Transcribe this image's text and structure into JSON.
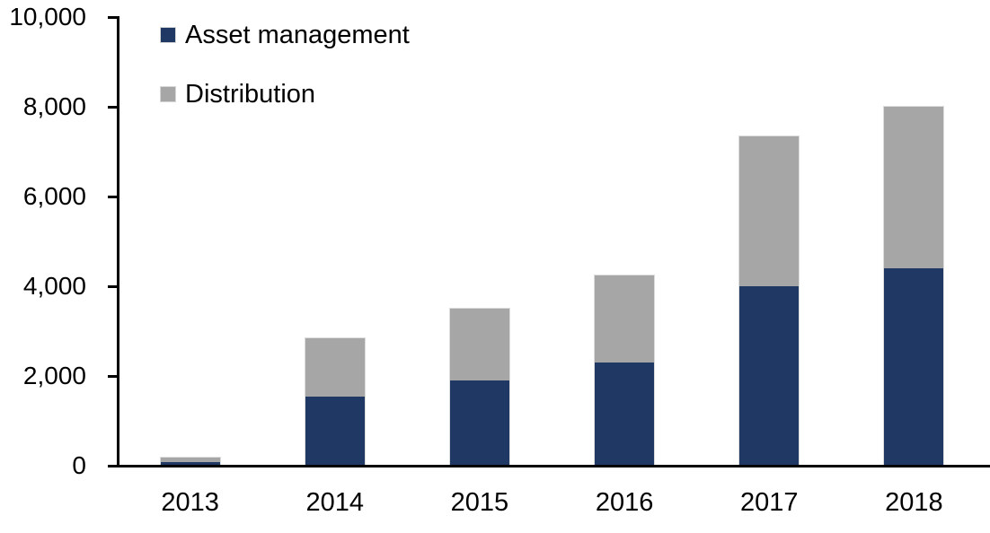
{
  "chart_data": {
    "type": "bar",
    "stacked": true,
    "title": "",
    "xlabel": "",
    "ylabel": "",
    "categories": [
      "2013",
      "2014",
      "2015",
      "2016",
      "2017",
      "2018"
    ],
    "series": [
      {
        "name": "Asset management",
        "color": "#1F3864",
        "values": [
          80,
          1550,
          1900,
          2300,
          4000,
          4400
        ]
      },
      {
        "name": "Distribution",
        "color": "#A6A6A6",
        "values": [
          100,
          1300,
          1600,
          1950,
          3350,
          3600
        ]
      }
    ],
    "totals": [
      180,
      2850,
      3500,
      4250,
      7350,
      8000
    ],
    "ylim": [
      0,
      10000
    ],
    "ytick_interval": 2000,
    "ytick_labels": [
      "0",
      "2,000",
      "4,000",
      "6,000",
      "8,000",
      "10,000"
    ],
    "grid": false,
    "legend_position": "top-left"
  },
  "colors": {
    "background": "#FFFFFF",
    "axis": "#000000",
    "text": "#000000",
    "bar_outline": "#DCDCDC"
  }
}
